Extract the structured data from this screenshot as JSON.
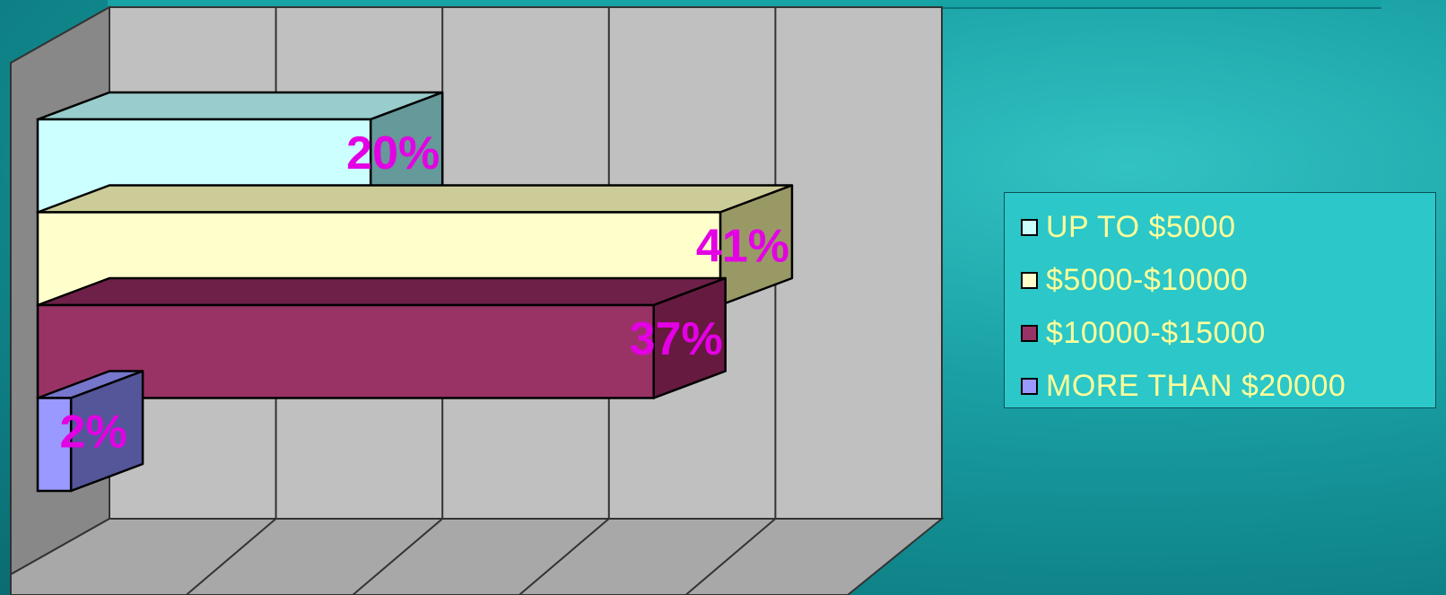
{
  "chart_data": {
    "type": "bar",
    "orientation": "horizontal",
    "style": "3d",
    "series": [
      {
        "name": "UP TO $5000",
        "value": 20,
        "label": "20%",
        "color": "#ccffff",
        "top_color": "#99cccc",
        "side_color": "#669999"
      },
      {
        "name": "$5000-$10000",
        "value": 41,
        "label": "41%",
        "color": "#ffffcc",
        "top_color": "#cccc99",
        "side_color": "#999966"
      },
      {
        "name": "$10000-$15000",
        "value": 37,
        "label": "37%",
        "color": "#993366",
        "top_color": "#6f2048",
        "side_color": "#661a3f"
      },
      {
        "name": "MORE THAN $20000",
        "value": 2,
        "label": "2%",
        "color": "#9999ff",
        "top_color": "#7676cc",
        "side_color": "#555599"
      }
    ],
    "xlim": [
      0,
      50
    ],
    "grid": true,
    "gridline_count": 5,
    "legend_position": "right",
    "label_color": "#e400e4",
    "wall_color": "#c0c0c0",
    "wall_side_color": "#888888",
    "floor_color": "#a8a8a8",
    "legend_background": "#2bc7c9",
    "legend_text_color": "#ffff99"
  }
}
